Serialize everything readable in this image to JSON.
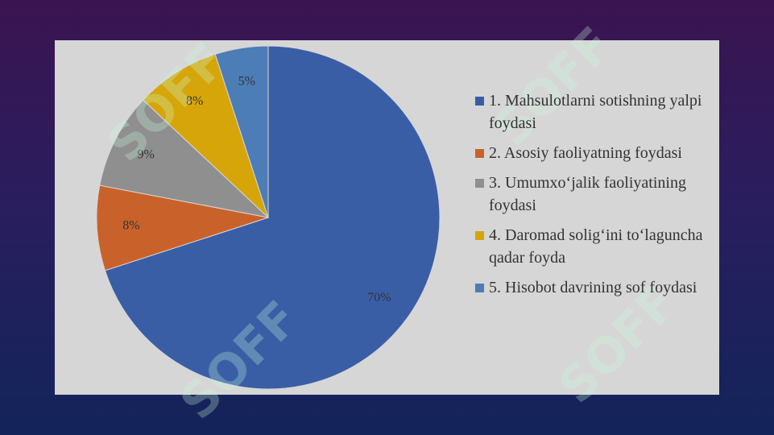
{
  "chart_data": {
    "type": "pie",
    "categories": [
      "1. Mahsulotlarni sotishning yalpi foydasi",
      "2. Asosiy faoliyatning foydasi",
      "3. Umumxo‘jalik faoliyatining foydasi",
      "4. Daromad solig‘ini to‘laguncha qadar foyda",
      "5. Hisobot davrining sof foydasi"
    ],
    "values": [
      70,
      8,
      9,
      8,
      5
    ],
    "value_labels": [
      "70%",
      "8%",
      "9%",
      "8%",
      "5%"
    ],
    "colors": [
      "#3a5ea6",
      "#c9622a",
      "#8f8f8f",
      "#d6a50a",
      "#4c7db6"
    ],
    "legend": "right"
  },
  "watermark": "SOFF"
}
